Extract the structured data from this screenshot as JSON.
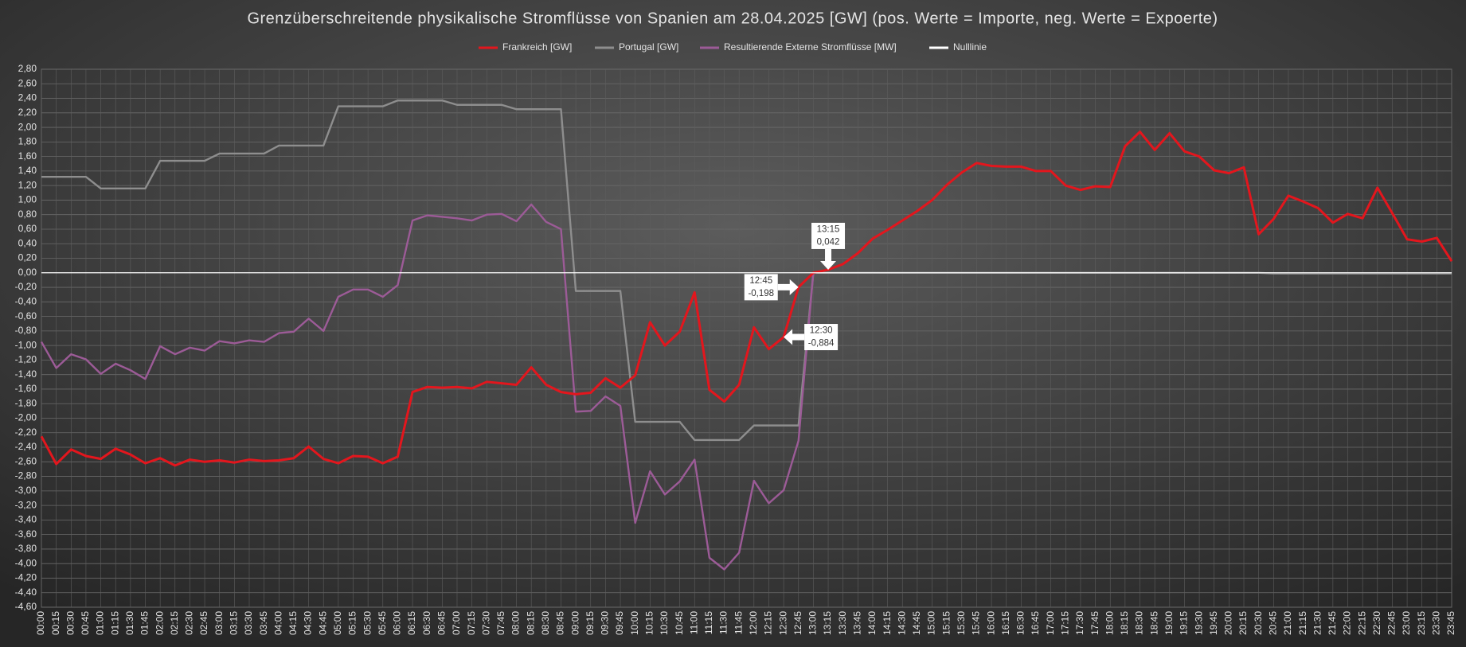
{
  "chart_data": {
    "type": "line",
    "title": "Grenzüberschreitende physikalische Stromflüsse von Spanien am 28.04.2025 [GW] (pos. Werte = Importe, neg. Werte = Expoerte)",
    "categories": [
      "00:00",
      "00:15",
      "00:30",
      "00:45",
      "01:00",
      "01:15",
      "01:30",
      "01:45",
      "02:00",
      "02:15",
      "02:30",
      "02:45",
      "03:00",
      "03:15",
      "03:30",
      "03:45",
      "04:00",
      "04:15",
      "04:30",
      "04:45",
      "05:00",
      "05:15",
      "05:30",
      "05:45",
      "06:00",
      "06:15",
      "06:30",
      "06:45",
      "07:00",
      "07:15",
      "07:30",
      "07:45",
      "08:00",
      "08:15",
      "08:30",
      "08:45",
      "09:00",
      "09:15",
      "09:30",
      "09:45",
      "10:00",
      "10:15",
      "10:30",
      "10:45",
      "11:00",
      "11:15",
      "11:30",
      "11:45",
      "12:00",
      "12:15",
      "12:30",
      "12:45",
      "13:00",
      "13:15",
      "13:30",
      "13:45",
      "14:00",
      "14:15",
      "14:30",
      "14:45",
      "15:00",
      "15:15",
      "15:30",
      "15:45",
      "16:00",
      "16:15",
      "16:30",
      "16:45",
      "17:00",
      "17:15",
      "17:30",
      "17:45",
      "18:00",
      "18:15",
      "18:30",
      "18:45",
      "19:00",
      "19:15",
      "19:30",
      "19:45",
      "20:00",
      "20:15",
      "20:30",
      "20:45",
      "21:00",
      "21:15",
      "21:30",
      "21:45",
      "22:00",
      "22:15",
      "22:30",
      "22:45",
      "23:00",
      "23:15",
      "23:30",
      "23:45"
    ],
    "series": [
      {
        "name": "Frankreich [GW]",
        "color": "#e3161d",
        "values": [
          -2.25,
          -2.63,
          -2.43,
          -2.52,
          -2.56,
          -2.42,
          -2.5,
          -2.62,
          -2.55,
          -2.65,
          -2.57,
          -2.6,
          -2.58,
          -2.61,
          -2.57,
          -2.59,
          -2.58,
          -2.55,
          -2.39,
          -2.56,
          -2.62,
          -2.52,
          -2.53,
          -2.62,
          -2.53,
          -1.64,
          -1.57,
          -1.58,
          -1.57,
          -1.59,
          -1.5,
          -1.52,
          -1.54,
          -1.3,
          -1.54,
          -1.64,
          -1.67,
          -1.65,
          -1.45,
          -1.58,
          -1.41,
          -0.68,
          -1.0,
          -0.81,
          -0.27,
          -1.61,
          -1.77,
          -1.54,
          -0.75,
          -1.05,
          -0.884,
          -0.198,
          0,
          0.042,
          0.12,
          0.27,
          0.47,
          0.59,
          0.72,
          0.85,
          1.0,
          1.21,
          1.38,
          1.51,
          1.47,
          1.46,
          1.46,
          1.4,
          1.4,
          1.2,
          1.14,
          1.19,
          1.18,
          1.74,
          1.94,
          1.69,
          1.92,
          1.67,
          1.6,
          1.41,
          1.37,
          1.45,
          0.53,
          0.74,
          1.06,
          0.98,
          0.89,
          0.69,
          0.81,
          0.75,
          1.17,
          0.82,
          0.46,
          0.43,
          0.48,
          0.16
        ]
      },
      {
        "name": "Portugal [GW]",
        "color": "#8e8e8e",
        "values": [
          1.32,
          1.32,
          1.32,
          1.32,
          1.16,
          1.16,
          1.16,
          1.16,
          1.54,
          1.54,
          1.54,
          1.54,
          1.64,
          1.64,
          1.64,
          1.64,
          1.75,
          1.75,
          1.75,
          1.75,
          2.29,
          2.29,
          2.29,
          2.29,
          2.37,
          2.37,
          2.37,
          2.37,
          2.31,
          2.31,
          2.31,
          2.31,
          2.25,
          2.25,
          2.25,
          2.25,
          -0.25,
          -0.25,
          -0.25,
          -0.25,
          -2.05,
          -2.05,
          -2.05,
          -2.05,
          -2.3,
          -2.3,
          -2.3,
          -2.3,
          -2.1,
          -2.1,
          -2.1,
          -2.1,
          0,
          0,
          0,
          0,
          0,
          0,
          0,
          0,
          0,
          0,
          0,
          0,
          0,
          0,
          0,
          0,
          0,
          0,
          0,
          0,
          0,
          0,
          0,
          0,
          0,
          0,
          0,
          0,
          0,
          0,
          0,
          -0.01,
          -0.01,
          -0.01,
          -0.01,
          -0.01,
          -0.01,
          -0.01,
          -0.01,
          -0.01,
          -0.01,
          -0.01,
          -0.01,
          -0.01
        ]
      },
      {
        "name": "Resultierende Externe Stromflüsse [MW]",
        "color": "#9c5b97",
        "values": [
          -0.95,
          -1.31,
          -1.12,
          -1.19,
          -1.39,
          -1.25,
          -1.34,
          -1.46,
          -1.01,
          -1.12,
          -1.03,
          -1.07,
          -0.94,
          -0.97,
          -0.93,
          -0.95,
          -0.83,
          -0.81,
          -0.63,
          -0.8,
          -0.33,
          -0.23,
          -0.23,
          -0.33,
          -0.17,
          0.72,
          0.79,
          0.77,
          0.75,
          0.72,
          0.8,
          0.81,
          0.71,
          0.94,
          0.7,
          0.6,
          -1.91,
          -1.9,
          -1.7,
          -1.83,
          -3.44,
          -2.73,
          -3.05,
          -2.87,
          -2.57,
          -3.92,
          -4.08,
          -3.85,
          -2.86,
          -3.17,
          -2.99,
          -2.31,
          0,
          null,
          null,
          null,
          null,
          null,
          null,
          null,
          null,
          null,
          null,
          null,
          null,
          null,
          null,
          null,
          null,
          null,
          null,
          null,
          null,
          null,
          null,
          null,
          null,
          null,
          null,
          null,
          null,
          null,
          null,
          null,
          null,
          null,
          null,
          null,
          null,
          null,
          null,
          null,
          null,
          null,
          null,
          null
        ]
      },
      {
        "name": "Nulllinie",
        "color": "#ffffff",
        "values": [
          0,
          0,
          0,
          0,
          0,
          0,
          0,
          0,
          0,
          0,
          0,
          0,
          0,
          0,
          0,
          0,
          0,
          0,
          0,
          0,
          0,
          0,
          0,
          0,
          0,
          0,
          0,
          0,
          0,
          0,
          0,
          0,
          0,
          0,
          0,
          0,
          0,
          0,
          0,
          0,
          0,
          0,
          0,
          0,
          0,
          0,
          0,
          0,
          0,
          0,
          0,
          0,
          0,
          0,
          0,
          0,
          0,
          0,
          0,
          0,
          0,
          0,
          0,
          0,
          0,
          0,
          0,
          0,
          0,
          0,
          0,
          0,
          0,
          0,
          0,
          0,
          0,
          0,
          0,
          0,
          0,
          0,
          0,
          0,
          0,
          0,
          0,
          0,
          0,
          0,
          0,
          0,
          0,
          0,
          0,
          0
        ]
      }
    ],
    "ylim": [
      -4.6,
      2.8
    ],
    "yticks": [
      {
        "value": 2.8,
        "label": "2,80"
      },
      {
        "value": 2.6,
        "label": "2,60"
      },
      {
        "value": 2.4,
        "label": "2,40"
      },
      {
        "value": 2.2,
        "label": "2,20"
      },
      {
        "value": 2.0,
        "label": "2,00"
      },
      {
        "value": 1.8,
        "label": "1,80"
      },
      {
        "value": 1.6,
        "label": "1,60"
      },
      {
        "value": 1.4,
        "label": "1,40"
      },
      {
        "value": 1.2,
        "label": "1,20"
      },
      {
        "value": 1.0,
        "label": "1,00"
      },
      {
        "value": 0.8,
        "label": "0,80"
      },
      {
        "value": 0.6,
        "label": "0,60"
      },
      {
        "value": 0.4,
        "label": "0,40"
      },
      {
        "value": 0.2,
        "label": "0,20"
      },
      {
        "value": 0,
        "label": "0,00"
      },
      {
        "value": -0.2,
        "label": "-0,20"
      },
      {
        "value": -0.4,
        "label": "-0,40"
      },
      {
        "value": -0.6,
        "label": "-0,60"
      },
      {
        "value": -0.8,
        "label": "-0,80"
      },
      {
        "value": -1.0,
        "label": "-1,00"
      },
      {
        "value": -1.2,
        "label": "-1,20"
      },
      {
        "value": -1.4,
        "label": "-1,40"
      },
      {
        "value": -1.6,
        "label": "-1,60"
      },
      {
        "value": -1.8,
        "label": "-1,80"
      },
      {
        "value": -2.0,
        "label": "-2,00"
      },
      {
        "value": -2.2,
        "label": "-2,20"
      },
      {
        "value": -2.4,
        "label": "-2,40"
      },
      {
        "value": -2.6,
        "label": "-2,60"
      },
      {
        "value": -2.8,
        "label": "-2,80"
      },
      {
        "value": -3.0,
        "label": "-3,00"
      },
      {
        "value": -3.2,
        "label": "-3,20"
      },
      {
        "value": -3.4,
        "label": "-3,40"
      },
      {
        "value": -3.6,
        "label": "-3,60"
      },
      {
        "value": -3.8,
        "label": "-3,80"
      },
      {
        "value": -4.0,
        "label": "-4,00"
      },
      {
        "value": -4.2,
        "label": "-4,20"
      },
      {
        "value": -4.4,
        "label": "-4,40"
      },
      {
        "value": -4.6,
        "label": "-4,60"
      }
    ],
    "grid": true,
    "legend": "top",
    "annotations": [
      {
        "x": "13:15",
        "label": "0,042",
        "placement": "above"
      },
      {
        "x": "12:45",
        "label": "-0,198",
        "placement": "left"
      },
      {
        "x": "12:30",
        "label": "-0,884",
        "placement": "right"
      }
    ]
  }
}
